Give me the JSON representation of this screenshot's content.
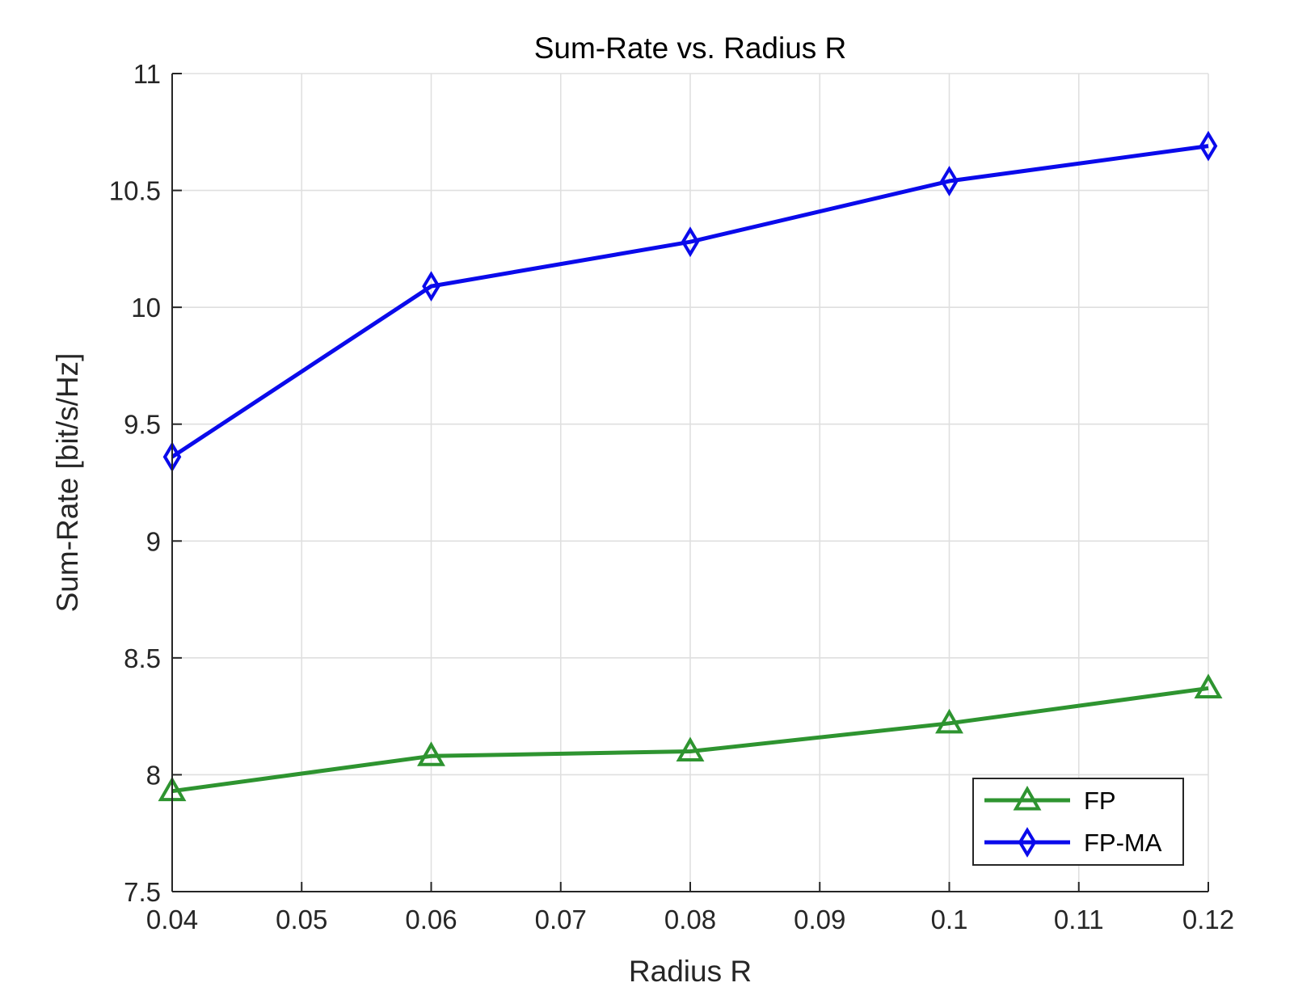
{
  "chart_data": {
    "type": "line",
    "title": "Sum-Rate vs. Radius R",
    "xlabel": "Radius R",
    "ylabel": "Sum-Rate [bit/s/Hz]",
    "xlim": [
      0.04,
      0.12
    ],
    "ylim": [
      7.5,
      11
    ],
    "xticks": [
      0.04,
      0.05,
      0.06,
      0.07,
      0.08,
      0.09,
      0.1,
      0.11,
      0.12
    ],
    "xtick_labels": [
      "0.04",
      "0.05",
      "0.06",
      "0.07",
      "0.08",
      "0.09",
      "0.1",
      "0.11",
      "0.12"
    ],
    "yticks": [
      7.5,
      8,
      8.5,
      9,
      9.5,
      10,
      10.5,
      11
    ],
    "ytick_labels": [
      "7.5",
      "8",
      "8.5",
      "9",
      "9.5",
      "10",
      "10.5",
      "11"
    ],
    "grid": true,
    "legend_position": "bottom-right",
    "series": [
      {
        "name": "FP",
        "color": "#2e9430",
        "marker": "triangle",
        "x": [
          0.04,
          0.06,
          0.08,
          0.1,
          0.12
        ],
        "y": [
          7.93,
          8.08,
          8.1,
          8.22,
          8.37
        ]
      },
      {
        "name": "FP-MA",
        "color": "#0a0aeb",
        "marker": "diamond",
        "x": [
          0.04,
          0.06,
          0.08,
          0.1,
          0.12
        ],
        "y": [
          9.36,
          10.09,
          10.28,
          10.54,
          10.69
        ]
      }
    ]
  }
}
